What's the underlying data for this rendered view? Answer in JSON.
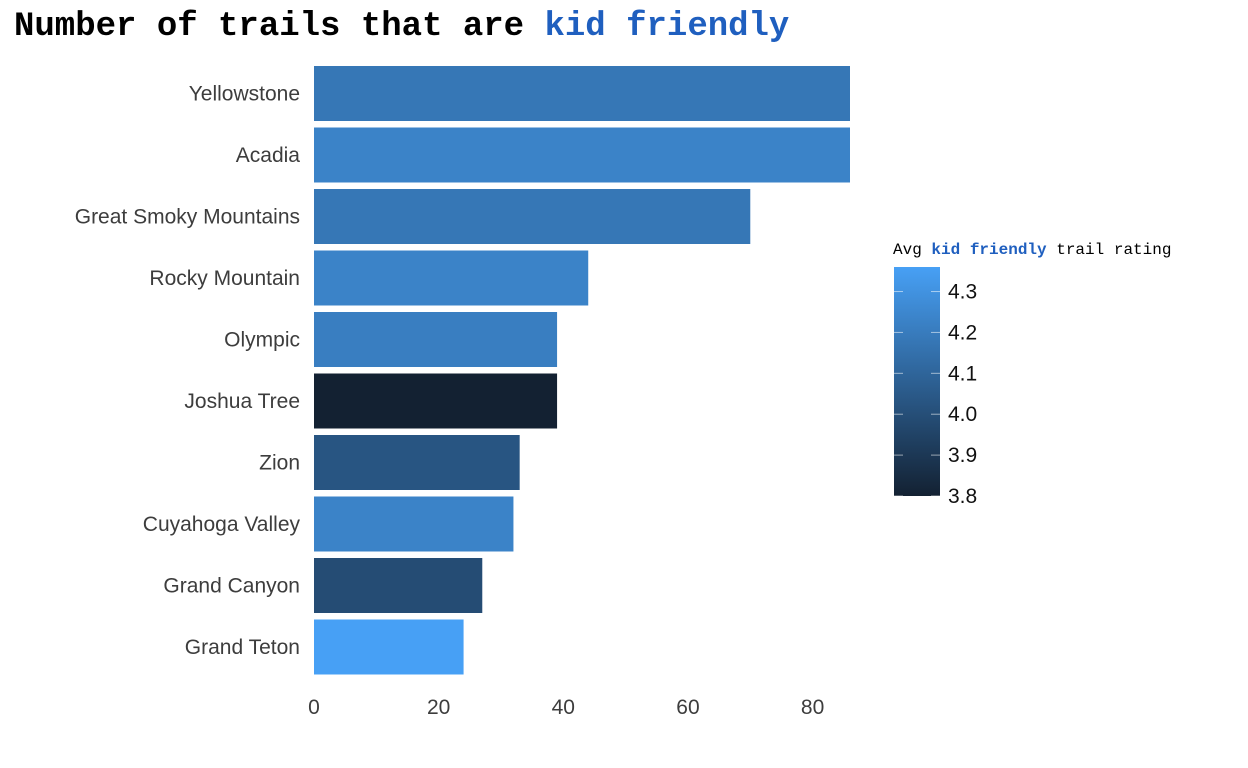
{
  "title": {
    "prefix": "Number of trails that are ",
    "highlight": "kid friendly"
  },
  "legend": {
    "prefix": "Avg ",
    "highlight": "kid friendly",
    "suffix": " trail rating",
    "ticks": [
      "3.8",
      "3.9",
      "4.0",
      "4.1",
      "4.2",
      "4.3"
    ]
  },
  "colors": {
    "highlight": "#1f5fbf",
    "low": "#132132",
    "high": "#47a0f5"
  },
  "chart_data": {
    "type": "bar",
    "orientation": "horizontal",
    "categories": [
      "Yellowstone",
      "Acadia",
      "Great Smoky Mountains",
      "Rocky Mountain",
      "Olympic",
      "Joshua Tree",
      "Zion",
      "Cuyahoga Valley",
      "Grand Canyon",
      "Grand Teton"
    ],
    "values": [
      86,
      86,
      70,
      44,
      39,
      39,
      33,
      32,
      27,
      24
    ],
    "color_values": [
      4.18,
      4.23,
      4.18,
      4.23,
      4.21,
      3.8,
      4.03,
      4.23,
      3.99,
      4.36
    ],
    "x_ticks": [
      "0",
      "20",
      "40",
      "60",
      "80"
    ],
    "xlim": [
      0,
      86
    ],
    "color_range": [
      3.8,
      4.36
    ],
    "grid": false,
    "legend_position": "right"
  }
}
